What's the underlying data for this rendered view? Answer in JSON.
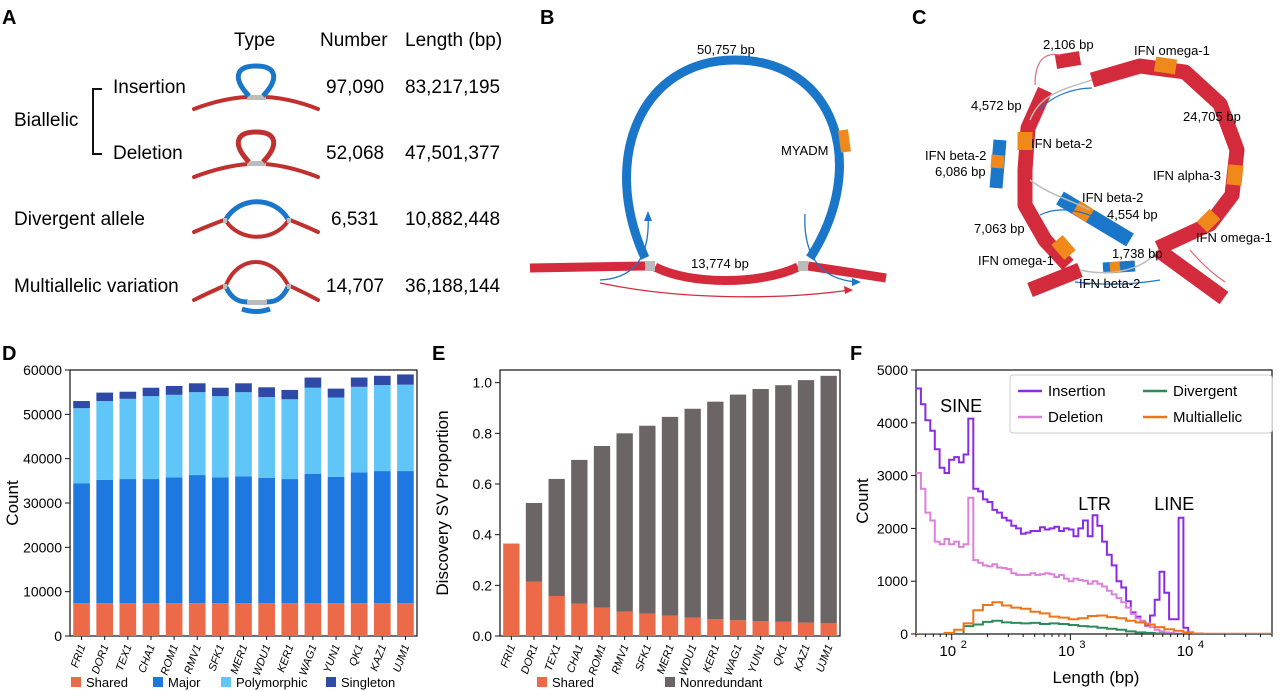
{
  "colors": {
    "blue_sv": "#1a76c9",
    "red_sv": "#d42b3c",
    "orange_sv": "#f0891b",
    "shared": "#ed6a49",
    "major": "#1f78e0",
    "polymorphic": "#5fc6f7",
    "singleton": "#2e4aa6",
    "nonredundant": "#6b6565",
    "insertion": "#8b2be2",
    "deletion": "#dd7fdc",
    "divergent": "#2e8b57",
    "multiallelic": "#ef7417"
  },
  "panels": {
    "a": {
      "letter": "A",
      "headers": {
        "type": "Type",
        "number": "Number",
        "length": "Length (bp)"
      },
      "group_label": "Biallelic",
      "rows": [
        {
          "label": "Insertion",
          "number": "97,090",
          "length": "83,217,195",
          "icon": "insertion-diagram"
        },
        {
          "label": "Deletion",
          "number": "52,068",
          "length": "47,501,377",
          "icon": "deletion-diagram"
        },
        {
          "label": "Divergent allele",
          "number": "6,531",
          "length": "10,882,448",
          "icon": "divergent-diagram"
        },
        {
          "label": "Multiallelic variation",
          "number": "14,707",
          "length": "36,188,144",
          "icon": "multiallelic-diagram"
        }
      ]
    },
    "b": {
      "letter": "B",
      "loop_length": "50,757 bp",
      "base_length": "13,774 bp",
      "gene": "MYADM"
    },
    "c": {
      "letter": "C",
      "labels": {
        "l2106": "2,106 bp",
        "omega_top": "IFN omega-1",
        "l4572": "4,572 bp",
        "beta2_a": "IFN beta-2",
        "l24705": "24,705 bp",
        "beta2_left": "IFN beta-2",
        "l6086": "6,086 bp",
        "alpha3": "IFN alpha-3",
        "beta2_mid": "IFN beta-2",
        "l4554": "4,554 bp",
        "l7063": "7,063 bp",
        "omega_right": "IFN omega-1",
        "omega_left": "IFN omega-1",
        "l1738": "1,738 bp",
        "beta2_bottom": "IFN beta-2"
      }
    },
    "d": {
      "letter": "D"
    },
    "e": {
      "letter": "E"
    },
    "f": {
      "letter": "F"
    }
  },
  "chart_data": [
    {
      "type": "bar",
      "stacked": true,
      "ylabel": "Count",
      "ylim": [
        0,
        60000
      ],
      "yticks": [
        "0",
        "10000",
        "20000",
        "30000",
        "40000",
        "50000",
        "60000"
      ],
      "ytick_values": [
        0,
        10000,
        20000,
        30000,
        40000,
        50000,
        60000
      ],
      "categories": [
        "FRI1",
        "DOR1",
        "TEX1",
        "CHA1",
        "ROM1",
        "RMV1",
        "SFK1",
        "MER1",
        "WDU1",
        "KER1",
        "WAG1",
        "YUN1",
        "QK1",
        "KAZ1",
        "UJM1"
      ],
      "series": [
        {
          "name": "Shared",
          "values": [
            7400,
            7400,
            7400,
            7400,
            7400,
            7400,
            7400,
            7400,
            7400,
            7400,
            7400,
            7400,
            7400,
            7400,
            7400
          ]
        },
        {
          "name": "Major",
          "values": [
            27000,
            27800,
            28000,
            28000,
            28400,
            28900,
            28400,
            28600,
            28300,
            28000,
            29200,
            28500,
            29500,
            29800,
            29800
          ]
        },
        {
          "name": "Polymorphic",
          "values": [
            17000,
            17800,
            18100,
            18700,
            18600,
            18700,
            18300,
            19000,
            18200,
            18000,
            19400,
            17900,
            19300,
            19400,
            19500
          ]
        },
        {
          "name": "Singleton",
          "values": [
            1600,
            1900,
            1600,
            1900,
            2000,
            2000,
            1900,
            2000,
            2200,
            2100,
            2300,
            2000,
            2100,
            2100,
            2300
          ]
        }
      ],
      "legend_placement": "bottom"
    },
    {
      "type": "bar",
      "stacked": true,
      "ylabel": "Discovery SV Proportion",
      "ylim": [
        0,
        1.05
      ],
      "yticks": [
        "0.0",
        "0.2",
        "0.4",
        "0.6",
        "0.8",
        "1.0"
      ],
      "ytick_values": [
        0,
        0.2,
        0.4,
        0.6,
        0.8,
        1.0
      ],
      "categories": [
        "FRI1",
        "DOR1",
        "TEX1",
        "CHA1",
        "ROM1",
        "RMV1",
        "SFK1",
        "MER1",
        "WDU1",
        "KER1",
        "WAG1",
        "YUN1",
        "QK1",
        "KAZ1",
        "UJM1"
      ],
      "series": [
        {
          "name": "Shared",
          "values": [
            0.365,
            0.215,
            0.158,
            0.128,
            0.112,
            0.096,
            0.088,
            0.08,
            0.072,
            0.066,
            0.062,
            0.058,
            0.056,
            0.053,
            0.05
          ]
        },
        {
          "name": "Nonredundant",
          "values": [
            0,
            0.31,
            0.462,
            0.567,
            0.638,
            0.704,
            0.742,
            0.785,
            0.825,
            0.859,
            0.891,
            0.917,
            0.934,
            0.957,
            0.977
          ]
        }
      ],
      "legend_placement": "bottom"
    },
    {
      "type": "line",
      "step": true,
      "xscale": "log",
      "xlabel": "Length (bp)",
      "ylabel": "Count",
      "xlim": [
        50,
        50000
      ],
      "ylim": [
        0,
        5000
      ],
      "yticks": [
        "0",
        "1000",
        "2000",
        "3000",
        "4000",
        "5000"
      ],
      "ytick_values": [
        0,
        1000,
        2000,
        3000,
        4000,
        5000
      ],
      "xticks": [
        {
          "base": "10",
          "exp": "2",
          "value": 100
        },
        {
          "base": "10",
          "exp": "3",
          "value": 1000
        },
        {
          "base": "10",
          "exp": "4",
          "value": 10000
        }
      ],
      "annotations": [
        {
          "text": "SINE",
          "x": 120,
          "y": 4200
        },
        {
          "text": "LTR",
          "x": 1600,
          "y": 2350
        },
        {
          "text": "LINE",
          "x": 7500,
          "y": 2350
        }
      ],
      "legend_placement": "top-right",
      "series": [
        {
          "name": "Insertion",
          "x": [
            50,
            55,
            60,
            66,
            72,
            79,
            87,
            95,
            105,
            115,
            126,
            138,
            152,
            167,
            183,
            200,
            220,
            241,
            265,
            290,
            318,
            349,
            383,
            420,
            461,
            506,
            555,
            609,
            668,
            733,
            804,
            882,
            968,
            1062,
            1165,
            1278,
            1402,
            1538,
            1688,
            1852,
            2032,
            2230,
            2446,
            2684,
            2945,
            3231,
            3545,
            3890,
            4268,
            4683,
            5138,
            5638,
            6186,
            6787,
            7447,
            8171,
            8966,
            9838,
            10794,
            11844,
            50000
          ],
          "values": [
            4650,
            4350,
            4050,
            3850,
            3500,
            3150,
            3050,
            3300,
            3350,
            3250,
            3400,
            4080,
            2750,
            2700,
            2550,
            2500,
            2350,
            2300,
            2200,
            2150,
            2050,
            2000,
            1900,
            1920,
            1950,
            1950,
            2020,
            1980,
            2000,
            2030,
            1950,
            2000,
            1980,
            1850,
            2000,
            2150,
            1850,
            2250,
            2050,
            1750,
            1500,
            1300,
            1000,
            880,
            620,
            410,
            330,
            220,
            160,
            350,
            650,
            1180,
            780,
            280,
            280,
            2200,
            120,
            30,
            0,
            0,
            0
          ]
        },
        {
          "name": "Deletion",
          "x": [
            50,
            55,
            60,
            66,
            72,
            79,
            87,
            95,
            105,
            115,
            126,
            138,
            152,
            167,
            183,
            200,
            220,
            241,
            265,
            290,
            318,
            349,
            383,
            420,
            461,
            506,
            555,
            609,
            668,
            733,
            804,
            882,
            968,
            1062,
            1165,
            1278,
            1402,
            1538,
            1688,
            1852,
            2032,
            2230,
            2446,
            2684,
            2945,
            3231,
            3545,
            3890,
            4268,
            4683,
            5138,
            5638,
            6186,
            6787,
            7447,
            8171,
            8966,
            9838,
            10794,
            11844,
            50000
          ],
          "values": [
            3050,
            2750,
            2300,
            2150,
            1750,
            1700,
            1800,
            1700,
            1750,
            1650,
            1700,
            2580,
            1400,
            1350,
            1300,
            1280,
            1320,
            1260,
            1250,
            1230,
            1150,
            1120,
            1120,
            1120,
            1150,
            1120,
            1130,
            1150,
            1130,
            1080,
            1120,
            1050,
            1000,
            1050,
            1020,
            1010,
            950,
            1000,
            950,
            900,
            820,
            750,
            680,
            600,
            500,
            380,
            300,
            250,
            200,
            130,
            80,
            50,
            30,
            20,
            10,
            5,
            0,
            0,
            0,
            0,
            0
          ]
        },
        {
          "name": "Divergent",
          "x": [
            50,
            66,
            87,
            105,
            126,
            152,
            183,
            220,
            265,
            318,
            383,
            461,
            555,
            668,
            804,
            968,
            1165,
            1402,
            1688,
            2032,
            2446,
            2945,
            3545,
            4268,
            5138,
            6186,
            7447,
            8966,
            50000
          ],
          "values": [
            0,
            0,
            0,
            0,
            150,
            180,
            230,
            250,
            220,
            210,
            200,
            210,
            190,
            200,
            190,
            170,
            150,
            140,
            120,
            100,
            80,
            50,
            30,
            20,
            10,
            0,
            0,
            0,
            0
          ]
        },
        {
          "name": "Multiallelic",
          "x": [
            50,
            66,
            87,
            105,
            126,
            152,
            183,
            220,
            265,
            318,
            383,
            461,
            555,
            668,
            804,
            968,
            1165,
            1402,
            1688,
            2032,
            2446,
            2945,
            3545,
            4268,
            5138,
            6186,
            7447,
            8966,
            10794,
            13000,
            50000
          ],
          "values": [
            0,
            0,
            20,
            80,
            200,
            450,
            550,
            600,
            540,
            500,
            480,
            420,
            390,
            330,
            310,
            280,
            300,
            340,
            350,
            320,
            300,
            250,
            220,
            180,
            130,
            90,
            60,
            30,
            10,
            5,
            0
          ]
        }
      ]
    }
  ]
}
